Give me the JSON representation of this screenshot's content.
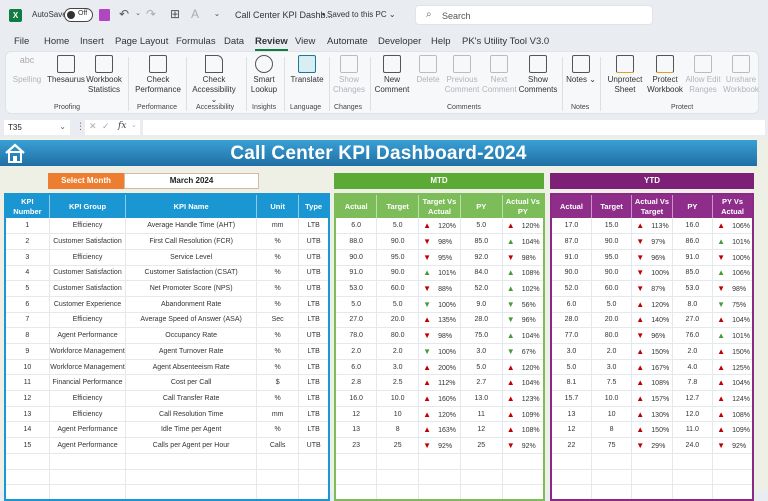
{
  "titlebar": {
    "app_icon": "excel-icon",
    "autosave_label": "AutoSave",
    "autosave_state": "Off",
    "document_title": "Call Center KPI Dashb...",
    "save_state": "• Saved to this PC ⌄",
    "search_placeholder": "Search"
  },
  "menu": {
    "tabs": [
      "File",
      "Home",
      "Insert",
      "Page Layout",
      "Formulas",
      "Data",
      "Review",
      "View",
      "Automate",
      "Developer",
      "Help",
      "PK's Utility Tool V3.0"
    ],
    "active": "Review"
  },
  "ribbon": {
    "buttons": [
      {
        "label": "Spelling",
        "icon": "spelling-icon",
        "disabled": true
      },
      {
        "label": "Thesaurus",
        "icon": "thesaurus-icon",
        "disabled": false
      },
      {
        "label": "Workbook Statistics",
        "icon": "workbook-statistics-icon",
        "disabled": false
      },
      {
        "label": "Check Performance",
        "icon": "check-performance-icon",
        "disabled": false
      },
      {
        "label": "Check Accessibility ⌄",
        "icon": "check-accessibility-icon",
        "disabled": false
      },
      {
        "label": "Smart Lookup",
        "icon": "smart-lookup-icon",
        "disabled": false
      },
      {
        "label": "Translate",
        "icon": "translate-icon",
        "disabled": false
      },
      {
        "label": "Show Changes",
        "icon": "show-changes-icon",
        "disabled": true
      },
      {
        "label": "New Comment",
        "icon": "new-comment-icon",
        "disabled": false
      },
      {
        "label": "Delete",
        "icon": "delete-comment-icon",
        "disabled": true
      },
      {
        "label": "Previous Comment",
        "icon": "previous-comment-icon",
        "disabled": true
      },
      {
        "label": "Next Comment",
        "icon": "next-comment-icon",
        "disabled": true
      },
      {
        "label": "Show Comments",
        "icon": "show-comments-icon",
        "disabled": false
      },
      {
        "label": "Notes ⌄",
        "icon": "notes-icon",
        "disabled": false
      },
      {
        "label": "Unprotect Sheet",
        "icon": "unprotect-sheet-icon",
        "disabled": false
      },
      {
        "label": "Protect Workbook",
        "icon": "protect-workbook-icon",
        "disabled": false
      },
      {
        "label": "Allow Edit Ranges",
        "icon": "allow-edit-ranges-icon",
        "disabled": true
      },
      {
        "label": "Unshare Workbook",
        "icon": "unshare-workbook-icon",
        "disabled": true
      }
    ],
    "groups": [
      "Proofing",
      "Performance",
      "Accessibility",
      "Insights",
      "Language",
      "Changes",
      "Comments",
      "Notes",
      "Protect"
    ]
  },
  "formula_bar": {
    "name_box": "T35",
    "formula": ""
  },
  "dashboard": {
    "title": "Call Center KPI Dashboard-2024",
    "select_month_label": "Select Month",
    "selected_month": "March 2024",
    "mtd_label": "MTD",
    "ytd_label": "YTD",
    "kpi_headers": [
      "KPI Number",
      "KPI Group",
      "KPI Name",
      "Unit",
      "Type"
    ],
    "mtd_headers": [
      "Actual",
      "Target",
      "Target Vs Actual",
      "PY",
      "Actual Vs PY"
    ],
    "ytd_headers": [
      "Actual",
      "Target",
      "Actual Vs Target",
      "PY",
      "PY Vs Actual"
    ],
    "colors": {
      "banner": "#1f78b4",
      "kpi": "#1a97d2",
      "mtd": "#5aaa35",
      "ytd": "#7e1f78",
      "select": "#ed7d31",
      "up_bad": "#c00000",
      "good": "#4a9a3a"
    },
    "rows": [
      {
        "num": "1",
        "group": "Efficiency",
        "name": "Average Handle Time (AHT)",
        "unit": "mm",
        "type": "LTB",
        "mtd": {
          "actual": "6.0",
          "target": "5.0",
          "tva": "120%",
          "tva_arrow": "▲",
          "tva_color": "red",
          "py": "5.0",
          "avp": "120%",
          "avp_arrow": "▲",
          "avp_color": "red"
        },
        "ytd": {
          "actual": "17.0",
          "target": "15.0",
          "avt": "113%",
          "avt_arrow": "▲",
          "avt_color": "red",
          "py": "16.0",
          "pva": "106%",
          "pva_arrow": "▲",
          "pva_color": "red"
        }
      },
      {
        "num": "2",
        "group": "Customer Satisfaction",
        "name": "First Call Resolution (FCR)",
        "unit": "%",
        "type": "UTB",
        "mtd": {
          "actual": "88.0",
          "target": "90.0",
          "tva": "98%",
          "tva_arrow": "▼",
          "tva_color": "red",
          "py": "85.0",
          "avp": "104%",
          "avp_arrow": "▲",
          "avp_color": "green"
        },
        "ytd": {
          "actual": "87.0",
          "target": "90.0",
          "avt": "97%",
          "avt_arrow": "▼",
          "avt_color": "red",
          "py": "86.0",
          "pva": "101%",
          "pva_arrow": "▲",
          "pva_color": "green"
        }
      },
      {
        "num": "3",
        "group": "Efficiency",
        "name": "Service Level",
        "unit": "%",
        "type": "UTB",
        "mtd": {
          "actual": "90.0",
          "target": "95.0",
          "tva": "95%",
          "tva_arrow": "▼",
          "tva_color": "red",
          "py": "92.0",
          "avp": "98%",
          "avp_arrow": "▼",
          "avp_color": "red"
        },
        "ytd": {
          "actual": "91.0",
          "target": "95.0",
          "avt": "96%",
          "avt_arrow": "▼",
          "avt_color": "red",
          "py": "91.0",
          "pva": "100%",
          "pva_arrow": "▼",
          "pva_color": "red"
        }
      },
      {
        "num": "4",
        "group": "Customer Satisfaction",
        "name": "Customer Satisfaction (CSAT)",
        "unit": "%",
        "type": "UTB",
        "mtd": {
          "actual": "91.0",
          "target": "90.0",
          "tva": "101%",
          "tva_arrow": "▲",
          "tva_color": "green",
          "py": "84.0",
          "avp": "108%",
          "avp_arrow": "▲",
          "avp_color": "green"
        },
        "ytd": {
          "actual": "90.0",
          "target": "90.0",
          "avt": "100%",
          "avt_arrow": "▼",
          "avt_color": "red",
          "py": "85.0",
          "pva": "106%",
          "pva_arrow": "▲",
          "pva_color": "green"
        }
      },
      {
        "num": "5",
        "group": "Customer Satisfaction",
        "name": "Net Promoter Score (NPS)",
        "unit": "%",
        "type": "UTB",
        "mtd": {
          "actual": "53.0",
          "target": "60.0",
          "tva": "88%",
          "tva_arrow": "▼",
          "tva_color": "red",
          "py": "52.0",
          "avp": "102%",
          "avp_arrow": "▲",
          "avp_color": "green"
        },
        "ytd": {
          "actual": "52.0",
          "target": "60.0",
          "avt": "87%",
          "avt_arrow": "▼",
          "avt_color": "red",
          "py": "53.0",
          "pva": "98%",
          "pva_arrow": "▼",
          "pva_color": "red"
        }
      },
      {
        "num": "6",
        "group": "Customer Experience",
        "name": "Abandonment Rate",
        "unit": "%",
        "type": "LTB",
        "mtd": {
          "actual": "5.0",
          "target": "5.0",
          "tva": "100%",
          "tva_arrow": "▼",
          "tva_color": "green",
          "py": "9.0",
          "avp": "56%",
          "avp_arrow": "▼",
          "avp_color": "green"
        },
        "ytd": {
          "actual": "6.0",
          "target": "5.0",
          "avt": "120%",
          "avt_arrow": "▲",
          "avt_color": "red",
          "py": "8.0",
          "pva": "75%",
          "pva_arrow": "▼",
          "pva_color": "green"
        }
      },
      {
        "num": "7",
        "group": "Efficiency",
        "name": "Average Speed of Answer (ASA)",
        "unit": "Sec",
        "type": "LTB",
        "mtd": {
          "actual": "27.0",
          "target": "20.0",
          "tva": "135%",
          "tva_arrow": "▲",
          "tva_color": "red",
          "py": "28.0",
          "avp": "96%",
          "avp_arrow": "▼",
          "avp_color": "green"
        },
        "ytd": {
          "actual": "28.0",
          "target": "20.0",
          "avt": "140%",
          "avt_arrow": "▲",
          "avt_color": "red",
          "py": "27.0",
          "pva": "104%",
          "pva_arrow": "▲",
          "pva_color": "red"
        }
      },
      {
        "num": "8",
        "group": "Agent Performance",
        "name": "Occupancy Rate",
        "unit": "%",
        "type": "UTB",
        "mtd": {
          "actual": "78.0",
          "target": "80.0",
          "tva": "98%",
          "tva_arrow": "▼",
          "tva_color": "red",
          "py": "75.0",
          "avp": "104%",
          "avp_arrow": "▲",
          "avp_color": "green"
        },
        "ytd": {
          "actual": "77.0",
          "target": "80.0",
          "avt": "96%",
          "avt_arrow": "▼",
          "avt_color": "red",
          "py": "76.0",
          "pva": "101%",
          "pva_arrow": "▲",
          "pva_color": "green"
        }
      },
      {
        "num": "9",
        "group": "Workforce Management",
        "name": "Agent Turnover Rate",
        "unit": "%",
        "type": "LTB",
        "mtd": {
          "actual": "2.0",
          "target": "2.0",
          "tva": "100%",
          "tva_arrow": "▼",
          "tva_color": "green",
          "py": "3.0",
          "avp": "67%",
          "avp_arrow": "▼",
          "avp_color": "green"
        },
        "ytd": {
          "actual": "3.0",
          "target": "2.0",
          "avt": "150%",
          "avt_arrow": "▲",
          "avt_color": "red",
          "py": "2.0",
          "pva": "150%",
          "pva_arrow": "▲",
          "pva_color": "red"
        }
      },
      {
        "num": "10",
        "group": "Workforce Management",
        "name": "Agent Absenteeism Rate",
        "unit": "%",
        "type": "LTB",
        "mtd": {
          "actual": "6.0",
          "target": "3.0",
          "tva": "200%",
          "tva_arrow": "▲",
          "tva_color": "red",
          "py": "5.0",
          "avp": "120%",
          "avp_arrow": "▲",
          "avp_color": "red"
        },
        "ytd": {
          "actual": "5.0",
          "target": "3.0",
          "avt": "167%",
          "avt_arrow": "▲",
          "avt_color": "red",
          "py": "4.0",
          "pva": "125%",
          "pva_arrow": "▲",
          "pva_color": "red"
        }
      },
      {
        "num": "11",
        "group": "Financial Performance",
        "name": "Cost per Call",
        "unit": "$",
        "type": "LTB",
        "mtd": {
          "actual": "2.8",
          "target": "2.5",
          "tva": "112%",
          "tva_arrow": "▲",
          "tva_color": "red",
          "py": "2.7",
          "avp": "104%",
          "avp_arrow": "▲",
          "avp_color": "red"
        },
        "ytd": {
          "actual": "8.1",
          "target": "7.5",
          "avt": "108%",
          "avt_arrow": "▲",
          "avt_color": "red",
          "py": "7.8",
          "pva": "104%",
          "pva_arrow": "▲",
          "pva_color": "red"
        }
      },
      {
        "num": "12",
        "group": "Efficiency",
        "name": "Call Transfer Rate",
        "unit": "%",
        "type": "LTB",
        "mtd": {
          "actual": "16.0",
          "target": "10.0",
          "tva": "160%",
          "tva_arrow": "▲",
          "tva_color": "red",
          "py": "13.0",
          "avp": "123%",
          "avp_arrow": "▲",
          "avp_color": "red"
        },
        "ytd": {
          "actual": "15.7",
          "target": "10.0",
          "avt": "157%",
          "avt_arrow": "▲",
          "avt_color": "red",
          "py": "12.7",
          "pva": "124%",
          "pva_arrow": "▲",
          "pva_color": "red"
        }
      },
      {
        "num": "13",
        "group": "Efficiency",
        "name": "Call Resolution Time",
        "unit": "mm",
        "type": "LTB",
        "mtd": {
          "actual": "12",
          "target": "10",
          "tva": "120%",
          "tva_arrow": "▲",
          "tva_color": "red",
          "py": "11",
          "avp": "109%",
          "avp_arrow": "▲",
          "avp_color": "red"
        },
        "ytd": {
          "actual": "13",
          "target": "10",
          "avt": "130%",
          "avt_arrow": "▲",
          "avt_color": "red",
          "py": "12.0",
          "pva": "108%",
          "pva_arrow": "▲",
          "pva_color": "red"
        }
      },
      {
        "num": "14",
        "group": "Agent Performance",
        "name": "Idle Time per Agent",
        "unit": "%",
        "type": "LTB",
        "mtd": {
          "actual": "13",
          "target": "8",
          "tva": "163%",
          "tva_arrow": "▲",
          "tva_color": "red",
          "py": "12",
          "avp": "108%",
          "avp_arrow": "▲",
          "avp_color": "red"
        },
        "ytd": {
          "actual": "12",
          "target": "8",
          "avt": "150%",
          "avt_arrow": "▲",
          "avt_color": "red",
          "py": "11.0",
          "pva": "109%",
          "pva_arrow": "▲",
          "pva_color": "red"
        }
      },
      {
        "num": "15",
        "group": "Agent Performance",
        "name": "Calls per Agent per Hour",
        "unit": "Calls",
        "type": "UTB",
        "mtd": {
          "actual": "23",
          "target": "25",
          "tva": "92%",
          "tva_arrow": "▼",
          "tva_color": "red",
          "py": "25",
          "avp": "92%",
          "avp_arrow": "▼",
          "avp_color": "red"
        },
        "ytd": {
          "actual": "22",
          "target": "75",
          "avt": "29%",
          "avt_arrow": "▼",
          "avt_color": "red",
          "py": "24.0",
          "pva": "92%",
          "pva_arrow": "▼",
          "pva_color": "red"
        }
      }
    ]
  }
}
